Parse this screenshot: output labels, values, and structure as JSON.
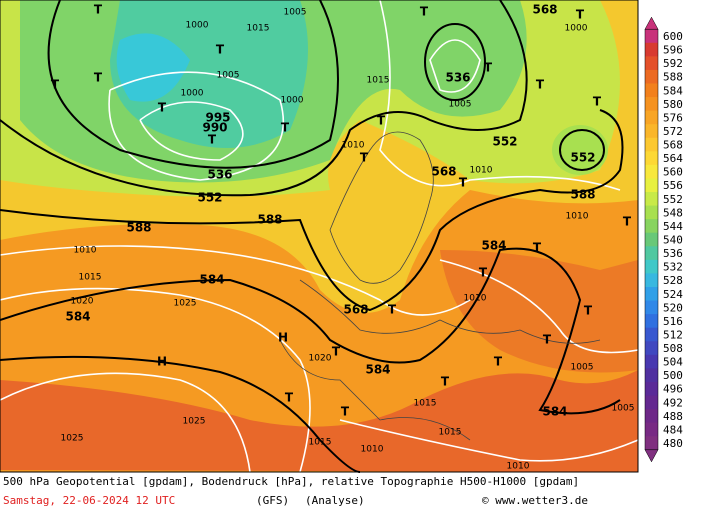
{
  "map": {
    "labels": [
      "T",
      "1000",
      "1015",
      "1005",
      "T",
      "568",
      "T",
      "1000",
      "T",
      "1005",
      "T",
      "T",
      "1000",
      "995",
      "990",
      "T",
      "T",
      "T",
      "1000",
      "1015",
      "536",
      "T",
      "1005",
      "552",
      "552",
      "T",
      "T",
      "T",
      "T",
      "1010",
      "536",
      "552",
      "568",
      "T",
      "1010",
      "588",
      "1010",
      "T",
      "588",
      "1010",
      "588",
      "584",
      "T",
      "1015",
      "584",
      "T",
      "1020",
      "1025",
      "584",
      "568",
      "T",
      "1010",
      "H",
      "H",
      "T",
      "1020",
      "584",
      "T",
      "T",
      "T",
      "T",
      "1015",
      "584",
      "1025",
      "1025",
      "1015",
      "1015",
      "1010",
      "1010",
      "1005",
      "1005",
      "T",
      "T"
    ],
    "colorbar": {
      "levels": [
        600,
        596,
        592,
        588,
        584,
        580,
        576,
        572,
        568,
        564,
        560,
        556,
        552,
        548,
        544,
        540,
        536,
        532,
        528,
        524,
        520,
        516,
        512,
        508,
        504,
        500,
        496,
        492,
        488,
        484,
        480
      ],
      "colors": [
        "#c8327a",
        "#d83a30",
        "#e4502a",
        "#ec6a22",
        "#f2801c",
        "#f59220",
        "#f8a525",
        "#fab62a",
        "#fcc830",
        "#fdd835",
        "#f8e83c",
        "#e8f040",
        "#c8ea48",
        "#a8e050",
        "#88d460",
        "#68c878",
        "#50c8a0",
        "#40c8c8",
        "#38b8e0",
        "#30a0e8",
        "#3088e8",
        "#3070e0",
        "#3858d0",
        "#4048c0",
        "#4838b0",
        "#5030a0",
        "#5a2a98",
        "#642890",
        "#6e2888",
        "#782a84",
        "#803080"
      ]
    },
    "caption": "500 hPa Geopotential [gpdam], Bodendruck [hPa], relative Topographie H500-H1000 [gpdam]",
    "date": "Samstag, 22-06-2024  12 UTC",
    "model": "(GFS)",
    "run": "(Analyse)",
    "credit": "© www.wetter3.de"
  }
}
